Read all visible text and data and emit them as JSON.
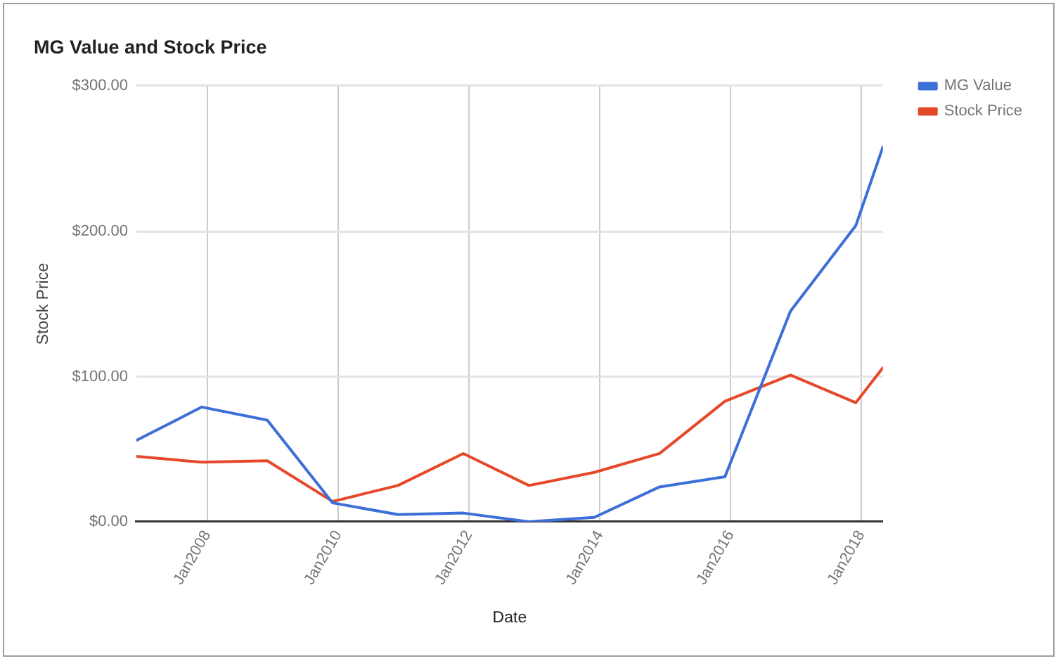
{
  "chart_data": {
    "type": "line",
    "title": "MG Value and Stock Price",
    "xlabel": "Date",
    "ylabel": "Stock Price",
    "x": [
      "2006-12",
      "2007-12",
      "2008-12",
      "2009-12",
      "2010-12",
      "2011-12",
      "2012-12",
      "2013-12",
      "2014-12",
      "2015-12",
      "2016-12",
      "2017-12",
      "2018-05"
    ],
    "series": [
      {
        "name": "MG Value",
        "color": "#3d6fd8",
        "values": [
          56,
          79,
          70,
          13,
          5,
          6,
          0,
          3,
          24,
          31,
          145,
          204,
          258
        ]
      },
      {
        "name": "Stock Price",
        "color": "#e6482a",
        "values": [
          45,
          41,
          42,
          14,
          25,
          47,
          25,
          34,
          47,
          83,
          101,
          82,
          106
        ]
      }
    ],
    "xlim": [
      "2006-12",
      "2018-05"
    ],
    "xticks": [
      {
        "value": "2008-01",
        "label": "Jan2008"
      },
      {
        "value": "2010-01",
        "label": "Jan2010"
      },
      {
        "value": "2012-01",
        "label": "Jan2012"
      },
      {
        "value": "2014-01",
        "label": "Jan2014"
      },
      {
        "value": "2016-01",
        "label": "Jan2016"
      },
      {
        "value": "2018-01",
        "label": "Jan2018"
      }
    ],
    "ylim": [
      0,
      300
    ],
    "yticks": [
      {
        "value": 0,
        "label": "$0.00"
      },
      {
        "value": 100,
        "label": "$100.00"
      },
      {
        "value": 200,
        "label": "$200.00"
      },
      {
        "value": 300,
        "label": "$300.00"
      }
    ],
    "grid": true,
    "legend": "right"
  }
}
